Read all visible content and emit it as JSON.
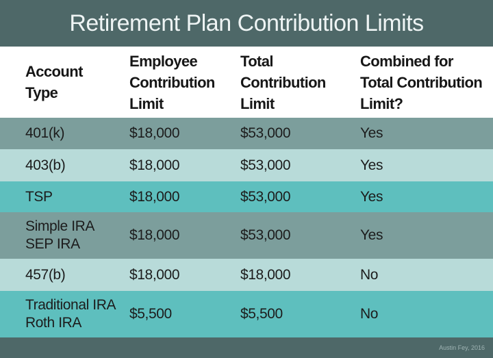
{
  "header": {
    "title": "Retirement Plan Contribution Limits"
  },
  "table": {
    "columns": [
      [
        "Account",
        "Type"
      ],
      [
        "Employee",
        "Contribution",
        "Limit"
      ],
      [
        "Total",
        "Contribution",
        "Limit"
      ],
      [
        "Combined for",
        "Total Contribution",
        "Limit?"
      ]
    ],
    "rows": [
      [
        [
          "401(k)"
        ],
        [
          "$18,000"
        ],
        [
          "$53,000"
        ],
        [
          "Yes"
        ]
      ],
      [
        [
          "403(b)"
        ],
        [
          "$18,000"
        ],
        [
          "$53,000"
        ],
        [
          "Yes"
        ]
      ],
      [
        [
          "TSP"
        ],
        [
          "$18,000"
        ],
        [
          "$53,000"
        ],
        [
          "Yes"
        ]
      ],
      [
        [
          "Simple IRA",
          "SEP IRA"
        ],
        [
          "$18,000"
        ],
        [
          "$53,000"
        ],
        [
          "Yes"
        ]
      ],
      [
        [
          "457(b)"
        ],
        [
          "$18,000"
        ],
        [
          "$18,000"
        ],
        [
          "No"
        ]
      ],
      [
        [
          "Traditional IRA",
          "Roth IRA"
        ],
        [
          "$5,500"
        ],
        [
          "$5,500"
        ],
        [
          "No"
        ]
      ]
    ]
  },
  "footer": {
    "credit": "Austin Fey, 2016"
  }
}
